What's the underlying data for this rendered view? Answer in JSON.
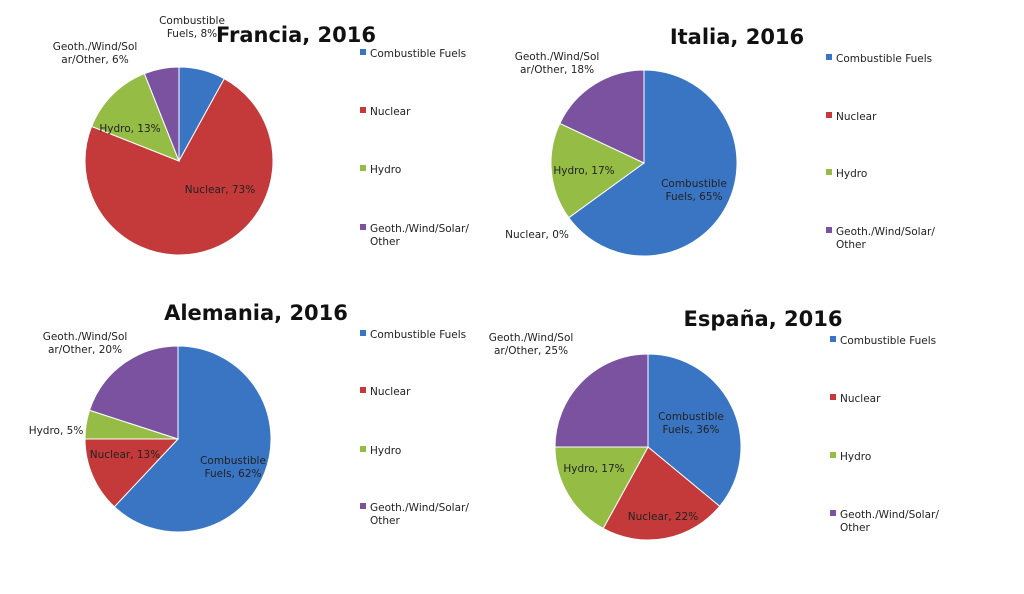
{
  "chart_data": [
    {
      "type": "pie",
      "title": "Francia, 2016",
      "slices": [
        {
          "name": "Combustible Fuels",
          "value": 8,
          "label": "Combustible Fuels, 8%",
          "color": "#3a75c4"
        },
        {
          "name": "Nuclear",
          "value": 73,
          "label": "Nuclear, 73%",
          "color": "#c43a3a"
        },
        {
          "name": "Hydro",
          "value": 13,
          "label": "Hydro, 13%",
          "color": "#95bd45"
        },
        {
          "name": "Geoth./Wind/Solar/Other",
          "value": 6,
          "label": "Geoth./Wind/Solar/Other, 6%",
          "color": "#7a52a0"
        }
      ],
      "legend": [
        "Combustible Fuels",
        "Nuclear",
        "Hydro",
        "Geoth./Wind/Solar/ Other"
      ],
      "legend_position": "right"
    },
    {
      "type": "pie",
      "title": "Italia, 2016",
      "slices": [
        {
          "name": "Combustible Fuels",
          "value": 65,
          "label": "Combustible Fuels, 65%",
          "color": "#3a75c4"
        },
        {
          "name": "Nuclear",
          "value": 0,
          "label": "Nuclear, 0%",
          "color": "#c43a3a"
        },
        {
          "name": "Hydro",
          "value": 17,
          "label": "Hydro, 17%",
          "color": "#95bd45"
        },
        {
          "name": "Geoth./Wind/Solar/Other",
          "value": 18,
          "label": "Geoth./Wind/Solar/Other, 18%",
          "color": "#7a52a0"
        }
      ],
      "legend": [
        "Combustible Fuels",
        "Nuclear",
        "Hydro",
        "Geoth./Wind/Solar/ Other"
      ],
      "legend_position": "right"
    },
    {
      "type": "pie",
      "title": "Alemania, 2016",
      "slices": [
        {
          "name": "Combustible Fuels",
          "value": 62,
          "label": "Combustible Fuels, 62%",
          "color": "#3a75c4"
        },
        {
          "name": "Nuclear",
          "value": 13,
          "label": "Nuclear, 13%",
          "color": "#c43a3a"
        },
        {
          "name": "Hydro",
          "value": 5,
          "label": "Hydro, 5%",
          "color": "#95bd45"
        },
        {
          "name": "Geoth./Wind/Solar/Other",
          "value": 20,
          "label": "Geoth./Wind/Solar/Other, 20%",
          "color": "#7a52a0"
        }
      ],
      "legend": [
        "Combustible Fuels",
        "Nuclear",
        "Hydro",
        "Geoth./Wind/Solar/ Other"
      ],
      "legend_position": "right"
    },
    {
      "type": "pie",
      "title": "España, 2016",
      "slices": [
        {
          "name": "Combustible Fuels",
          "value": 36,
          "label": "Combustible Fuels, 36%",
          "color": "#3a75c4"
        },
        {
          "name": "Nuclear",
          "value": 22,
          "label": "Nuclear, 22%",
          "color": "#c43a3a"
        },
        {
          "name": "Hydro",
          "value": 17,
          "label": "Hydro, 17%",
          "color": "#95bd45"
        },
        {
          "name": "Geoth./Wind/Solar/Other",
          "value": 25,
          "label": "Geoth./Wind/Solar/Other, 25%",
          "color": "#7a52a0"
        }
      ],
      "legend": [
        "Combustible Fuels",
        "Nuclear",
        "Hydro",
        "Geoth./Wind/Solar/ Other"
      ],
      "legend_position": "right"
    }
  ]
}
